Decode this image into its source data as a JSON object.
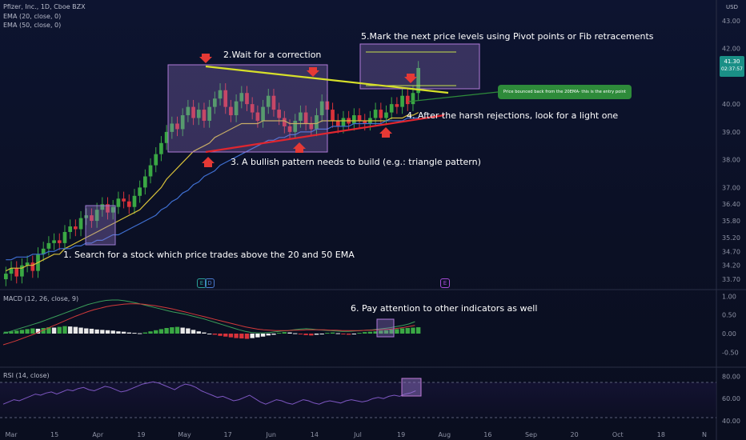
{
  "header": {
    "symbol": "Pfizer, Inc., 1D, Cboe BZX",
    "ema20": "EMA (20, close, 0)",
    "ema50": "EMA (50, close, 0)",
    "macd": "MACD (12, 26, close, 9)",
    "rsi": "RSI (14, close)",
    "currency": "USD"
  },
  "price_tag": {
    "price": "41.30",
    "time": "02:37:57"
  },
  "annotations": {
    "a1": "1. Search for a stock which price trades above the 20 and 50 EMA",
    "a2": "2.Wait for a correction",
    "a3": "3. A bullish pattern needs to build (e.g.: triangle pattern)",
    "a4": "4. After the harsh rejections, look for a light one",
    "a5": "5.Mark the next price levels using Pivot points or Fib retracements",
    "a6": "6. Pay attention to other indicators as well",
    "callout": "Price bounced back from the 20EMA- this is the entry point"
  },
  "events": [
    {
      "label": "E",
      "color": "#2aa198"
    },
    {
      "label": "D",
      "color": "#4a7bd0"
    },
    {
      "label": "E",
      "color": "#a64bd6"
    }
  ],
  "colors": {
    "up": "#3aa844",
    "down": "#d9323a",
    "ema20": "#d8c13a",
    "ema50": "#3f6fd1",
    "macd_line": "#3a9f5a",
    "signal_line": "#d33a3a",
    "rsi_line": "#7e57c2",
    "trend_upper": "#d7e02a",
    "trend_lower": "#e0262f",
    "box": "#9b7bd1",
    "arrow": "#e53935"
  },
  "chart_data": [
    {
      "type": "candlestick",
      "title": "Pfizer, Inc., 1D, Cboe BZX",
      "ylim": [
        33.5,
        43.4
      ],
      "y_ticks": [
        "43.00",
        "42.00",
        "41.30",
        "40.00",
        "39.00",
        "38.00",
        "37.00",
        "36.40",
        "35.80",
        "35.20",
        "34.70",
        "34.20",
        "33.70"
      ],
      "x_ticks": [
        "Mar",
        "15",
        "Apr",
        "19",
        "May",
        "17",
        "Jun",
        "14",
        "Jul",
        "19",
        "Aug",
        "16",
        "Sep",
        "20",
        "Oct",
        "18",
        "N"
      ],
      "last_close": 41.3,
      "closes": [
        33.9,
        34.1,
        33.8,
        34.2,
        34.3,
        34.0,
        34.6,
        34.8,
        35.0,
        35.1,
        35.0,
        35.4,
        35.6,
        35.5,
        35.9,
        36.0,
        35.8,
        36.2,
        36.4,
        36.1,
        36.3,
        36.6,
        36.5,
        36.3,
        36.7,
        37.0,
        37.4,
        37.8,
        38.2,
        38.6,
        39.0,
        39.3,
        39.1,
        39.6,
        39.9,
        39.5,
        39.8,
        39.4,
        39.9,
        40.2,
        40.5,
        39.9,
        39.6,
        40.1,
        40.4,
        40.0,
        39.7,
        39.4,
        39.9,
        40.3,
        39.8,
        39.5,
        39.2,
        39.0,
        39.4,
        39.7,
        39.3,
        39.1,
        39.6,
        40.1,
        39.8,
        39.4,
        39.2,
        39.5,
        39.3,
        39.6,
        39.4,
        39.3,
        39.5,
        39.8,
        39.5,
        39.7,
        40.0,
        39.9,
        40.3,
        40.0,
        40.4,
        41.3
      ],
      "ema20": [
        34.0,
        34.1,
        34.1,
        34.1,
        34.2,
        34.2,
        34.3,
        34.4,
        34.5,
        34.6,
        34.6,
        34.8,
        34.9,
        35.0,
        35.1,
        35.2,
        35.3,
        35.4,
        35.5,
        35.6,
        35.7,
        35.8,
        35.9,
        36.0,
        36.1,
        36.2,
        36.4,
        36.6,
        36.8,
        37.0,
        37.3,
        37.5,
        37.7,
        37.9,
        38.1,
        38.3,
        38.4,
        38.5,
        38.6,
        38.8,
        38.9,
        39.0,
        39.1,
        39.2,
        39.3,
        39.3,
        39.3,
        39.3,
        39.4,
        39.4,
        39.4,
        39.4,
        39.4,
        39.3,
        39.3,
        39.3,
        39.3,
        39.3,
        39.3,
        39.4,
        39.4,
        39.4,
        39.4,
        39.4,
        39.4,
        39.4,
        39.4,
        39.4,
        39.4,
        39.4,
        39.4,
        39.4,
        39.5,
        39.5,
        39.5,
        39.6,
        39.6,
        39.7
      ],
      "ema50": [
        34.4,
        34.4,
        34.5,
        34.5,
        34.5,
        34.6,
        34.6,
        34.6,
        34.7,
        34.7,
        34.8,
        34.8,
        34.8,
        34.9,
        34.9,
        35.0,
        35.0,
        35.1,
        35.1,
        35.2,
        35.3,
        35.3,
        35.4,
        35.5,
        35.6,
        35.7,
        35.8,
        35.9,
        36.0,
        36.2,
        36.3,
        36.5,
        36.6,
        36.8,
        36.9,
        37.1,
        37.2,
        37.4,
        37.5,
        37.6,
        37.8,
        37.9,
        38.0,
        38.1,
        38.2,
        38.3,
        38.4,
        38.5,
        38.6,
        38.7,
        38.7,
        38.8,
        38.8,
        38.9,
        38.9,
        39.0,
        39.0,
        39.0,
        39.1,
        39.1,
        39.1,
        39.2,
        39.2,
        39.2,
        39.2,
        39.3,
        39.3,
        39.3,
        39.3,
        39.3,
        39.3,
        39.4,
        39.4,
        39.4,
        39.4,
        39.5,
        39.5,
        39.5
      ]
    },
    {
      "type": "bar",
      "title": "MACD (12, 26, close, 9)",
      "ylim": [
        -0.75,
        1.05
      ],
      "y_ticks": [
        "1.00",
        "0.50",
        "0.00",
        "-0.50"
      ],
      "histogram": [
        0.05,
        0.06,
        0.08,
        0.1,
        0.12,
        0.14,
        0.13,
        0.15,
        0.17,
        0.16,
        0.18,
        0.2,
        0.19,
        0.18,
        0.16,
        0.14,
        0.13,
        0.11,
        0.1,
        0.09,
        0.08,
        0.06,
        0.05,
        0.03,
        0.02,
        0.01,
        0.03,
        0.06,
        0.09,
        0.12,
        0.15,
        0.17,
        0.18,
        0.16,
        0.14,
        0.1,
        0.06,
        0.03,
        0.0,
        -0.03,
        -0.06,
        -0.08,
        -0.1,
        -0.12,
        -0.13,
        -0.14,
        -0.12,
        -0.1,
        -0.08,
        -0.05,
        -0.03,
        0.02,
        0.04,
        0.03,
        0.01,
        -0.02,
        -0.04,
        -0.05,
        -0.03,
        -0.01,
        0.02,
        0.03,
        0.01,
        -0.02,
        -0.03,
        -0.01,
        0.02,
        0.04,
        0.05,
        0.06,
        0.08,
        0.09,
        0.11,
        0.12,
        0.14,
        0.15,
        0.16,
        0.17
      ],
      "macd": [
        0.0,
        0.05,
        0.1,
        0.15,
        0.2,
        0.25,
        0.3,
        0.36,
        0.42,
        0.48,
        0.54,
        0.6,
        0.66,
        0.72,
        0.78,
        0.82,
        0.86,
        0.89,
        0.9,
        0.9,
        0.88,
        0.85,
        0.82,
        0.78,
        0.74,
        0.7,
        0.66,
        0.62,
        0.58,
        0.55,
        0.52,
        0.48,
        0.44,
        0.4,
        0.35,
        0.3,
        0.25,
        0.2,
        0.15,
        0.1,
        0.06,
        0.03,
        0.02,
        0.02,
        0.03,
        0.05,
        0.07,
        0.08,
        0.1,
        0.12,
        0.13,
        0.12,
        0.1,
        0.09,
        0.08,
        0.07,
        0.06,
        0.06,
        0.07,
        0.08,
        0.09,
        0.1,
        0.12,
        0.14,
        0.16,
        0.19,
        0.22,
        0.26,
        0.32
      ],
      "signal": [
        -0.3,
        -0.25,
        -0.2,
        -0.14,
        -0.08,
        -0.02,
        0.05,
        0.12,
        0.19,
        0.26,
        0.33,
        0.4,
        0.47,
        0.53,
        0.59,
        0.64,
        0.68,
        0.72,
        0.75,
        0.77,
        0.79,
        0.8,
        0.8,
        0.79,
        0.77,
        0.75,
        0.72,
        0.69,
        0.66,
        0.62,
        0.58,
        0.54,
        0.5,
        0.46,
        0.42,
        0.38,
        0.34,
        0.3,
        0.26,
        0.22,
        0.18,
        0.15,
        0.12,
        0.1,
        0.09,
        0.08,
        0.08,
        0.08,
        0.09,
        0.09,
        0.1,
        0.1,
        0.1,
        0.1,
        0.09,
        0.09,
        0.08,
        0.08,
        0.08,
        0.08,
        0.09,
        0.09,
        0.1,
        0.11,
        0.12,
        0.14,
        0.16,
        0.19,
        0.22
      ]
    },
    {
      "type": "line",
      "title": "RSI (14, close)",
      "ylim": [
        30,
        86
      ],
      "y_ticks": [
        "80.00",
        "60.00",
        "40.00"
      ],
      "bands": [
        70,
        30
      ],
      "values": [
        55,
        57,
        59,
        58,
        60,
        62,
        64,
        63,
        65,
        66,
        64,
        66,
        68,
        67,
        69,
        70,
        68,
        67,
        69,
        71,
        70,
        68,
        66,
        67,
        69,
        71,
        73,
        74,
        75,
        74,
        72,
        70,
        68,
        71,
        73,
        72,
        70,
        67,
        65,
        63,
        61,
        62,
        60,
        58,
        59,
        61,
        63,
        60,
        57,
        55,
        57,
        59,
        58,
        56,
        55,
        57,
        59,
        58,
        56,
        55,
        57,
        58,
        57,
        56,
        58,
        59,
        58,
        57,
        58,
        60,
        61,
        60,
        62,
        63,
        62,
        64,
        65,
        67
      ]
    }
  ]
}
